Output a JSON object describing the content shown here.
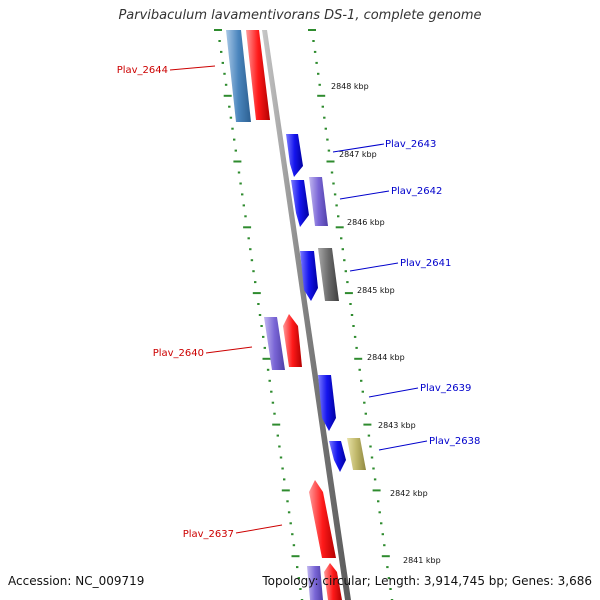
{
  "header": {
    "title": "Parvibaculum lavamentivorans DS-1, complete genome"
  },
  "footer": {
    "accession": "Accession: NC_009719",
    "topology": "Topology: circular; Length: 3,914,745 bp; Genes: 3,686"
  },
  "colors": {
    "backbone": "#7f7f7f",
    "tick": "#2e8b2e",
    "label_forward": "#cc0000",
    "label_reverse": "#0000cc"
  },
  "scale_labels": [
    "2848 kbp",
    "2847 kbp",
    "2846 kbp",
    "2845 kbp",
    "2844 kbp",
    "2843 kbp",
    "2842 kbp",
    "2841 kbp"
  ],
  "genes": [
    {
      "label": "Plav_2644",
      "strand": "forward"
    },
    {
      "label": "Plav_2643",
      "strand": "reverse"
    },
    {
      "label": "Plav_2642",
      "strand": "reverse"
    },
    {
      "label": "Plav_2641",
      "strand": "reverse"
    },
    {
      "label": "Plav_2640",
      "strand": "forward"
    },
    {
      "label": "Plav_2639",
      "strand": "reverse"
    },
    {
      "label": "Plav_2638",
      "strand": "reverse"
    },
    {
      "label": "Plav_2637",
      "strand": "forward"
    }
  ]
}
